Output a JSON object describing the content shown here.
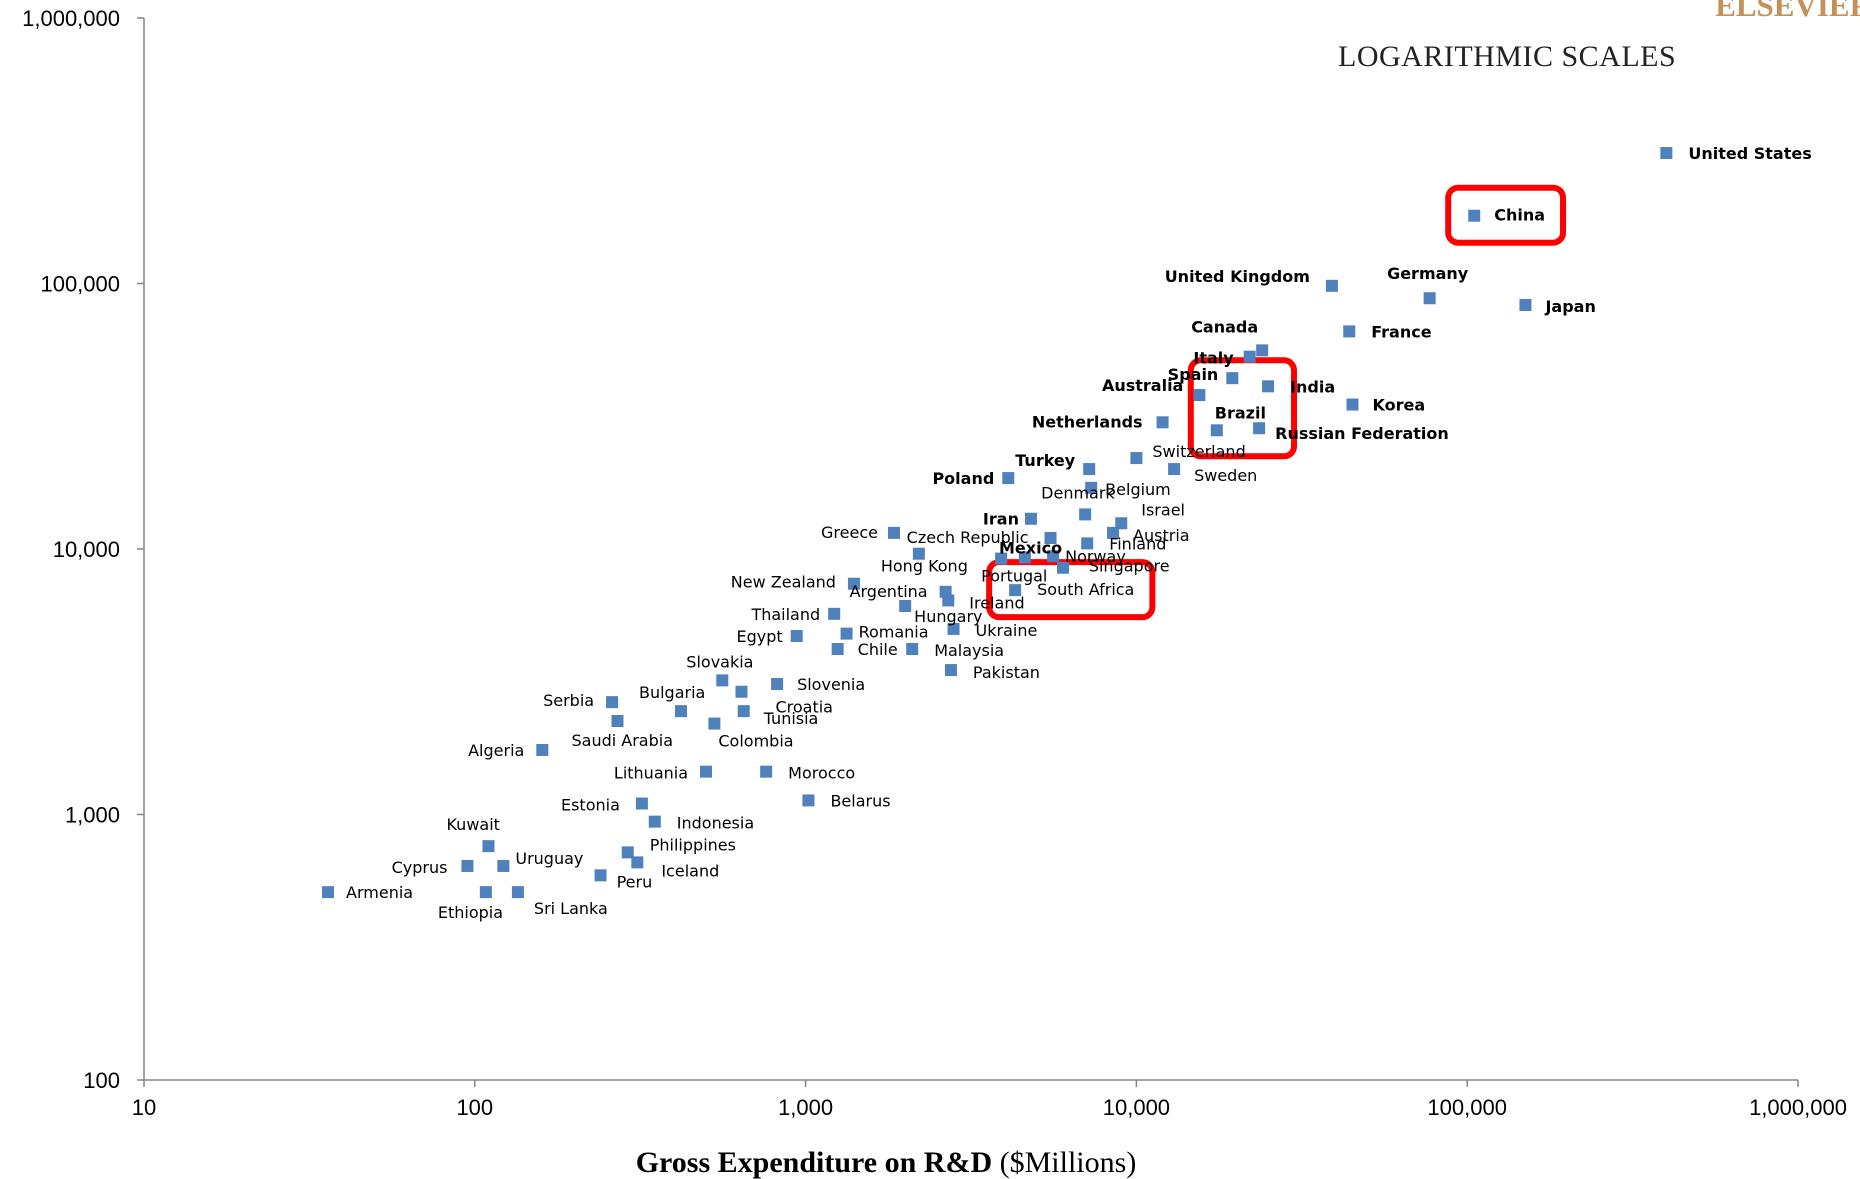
{
  "brand": "ELSEVIER",
  "chart_data": {
    "type": "scatter",
    "title": "",
    "annotation": "LOGARITHMIC SCALES",
    "xlabel_bold": "Gross Expenditure on R&D",
    "xlabel_rest": " ($Millions)",
    "ylabel": "",
    "xscale": "log",
    "yscale": "log",
    "xlim": [
      10,
      1000000
    ],
    "ylim": [
      100,
      1000000
    ],
    "x_ticks": [
      "10",
      "100",
      "1,000",
      "10,000",
      "100,000",
      "1,000,000"
    ],
    "y_ticks": [
      "100",
      "1,000",
      "10,000",
      "100,000",
      "1,000,000"
    ],
    "grid": false,
    "marker_color": "#4f81bd",
    "highlight_color": "#ff0000",
    "points": [
      {
        "label": "United States",
        "x": 400000,
        "y": 310000,
        "bold": true
      },
      {
        "label": "China",
        "x": 105000,
        "y": 180000,
        "bold": true
      },
      {
        "label": "Japan",
        "x": 150000,
        "y": 83000,
        "bold": true
      },
      {
        "label": "Germany",
        "x": 77000,
        "y": 88000,
        "bold": true
      },
      {
        "label": "United Kingdom",
        "x": 39000,
        "y": 98000,
        "bold": true
      },
      {
        "label": "France",
        "x": 44000,
        "y": 66000,
        "bold": true
      },
      {
        "label": "Canada",
        "x": 24000,
        "y": 56000,
        "bold": true
      },
      {
        "label": "Italy",
        "x": 22000,
        "y": 53000,
        "bold": true
      },
      {
        "label": "Spain",
        "x": 19500,
        "y": 44000,
        "bold": true
      },
      {
        "label": "India",
        "x": 25000,
        "y": 41000,
        "bold": true
      },
      {
        "label": "Australia",
        "x": 15500,
        "y": 38000,
        "bold": true
      },
      {
        "label": "Korea",
        "x": 45000,
        "y": 35000,
        "bold": true
      },
      {
        "label": "Brazil",
        "x": 17500,
        "y": 28000,
        "bold": true
      },
      {
        "label": "Russian Federation",
        "x": 23500,
        "y": 28500,
        "bold": true
      },
      {
        "label": "Netherlands",
        "x": 12000,
        "y": 30000,
        "bold": true
      },
      {
        "label": "Switzerland",
        "x": 10000,
        "y": 22000,
        "bold": false
      },
      {
        "label": "Sweden",
        "x": 13000,
        "y": 20000,
        "bold": false
      },
      {
        "label": "Turkey",
        "x": 7200,
        "y": 20000,
        "bold": true
      },
      {
        "label": "Poland",
        "x": 4100,
        "y": 18500,
        "bold": true
      },
      {
        "label": "Belgium",
        "x": 7300,
        "y": 17000,
        "bold": false
      },
      {
        "label": "Iran",
        "x": 4800,
        "y": 13000,
        "bold": true
      },
      {
        "label": "Denmark",
        "x": 7000,
        "y": 13500,
        "bold": false
      },
      {
        "label": "Israel",
        "x": 9000,
        "y": 12500,
        "bold": false
      },
      {
        "label": "Austria",
        "x": 8500,
        "y": 11500,
        "bold": false
      },
      {
        "label": "Greece",
        "x": 1850,
        "y": 11500,
        "bold": false
      },
      {
        "label": "Czech Republic",
        "x": 5500,
        "y": 11000,
        "bold": false
      },
      {
        "label": "Finland",
        "x": 7100,
        "y": 10500,
        "bold": false
      },
      {
        "label": "Mexico",
        "x": 6000,
        "y": 8500,
        "bold": true
      },
      {
        "label": "Hong Kong",
        "x": 2200,
        "y": 9600,
        "bold": false
      },
      {
        "label": "Norway",
        "x": 5600,
        "y": 9400,
        "bold": false
      },
      {
        "label": "Singapore",
        "x": 4600,
        "y": 9300,
        "bold": false
      },
      {
        "label": "Portugal",
        "x": 3900,
        "y": 9200,
        "bold": false
      },
      {
        "label": "South Africa",
        "x": 4300,
        "y": 7000,
        "bold": false
      },
      {
        "label": "Ireland",
        "x": 2700,
        "y": 6400,
        "bold": false
      },
      {
        "label": "Argentina",
        "x": 2650,
        "y": 6900,
        "bold": false
      },
      {
        "label": "New Zealand",
        "x": 1400,
        "y": 7400,
        "bold": false
      },
      {
        "label": "Hungary",
        "x": 2000,
        "y": 6100,
        "bold": false
      },
      {
        "label": "Thailand",
        "x": 1220,
        "y": 5700,
        "bold": false
      },
      {
        "label": "Ukraine",
        "x": 2800,
        "y": 5000,
        "bold": false
      },
      {
        "label": "Romania",
        "x": 1330,
        "y": 4800,
        "bold": false
      },
      {
        "label": "Egypt",
        "x": 940,
        "y": 4700,
        "bold": false
      },
      {
        "label": "Chile",
        "x": 1250,
        "y": 4200,
        "bold": false
      },
      {
        "label": "Malaysia",
        "x": 2100,
        "y": 4200,
        "bold": false
      },
      {
        "label": "Pakistan",
        "x": 2750,
        "y": 3500,
        "bold": false
      },
      {
        "label": "Slovakia",
        "x": 560,
        "y": 3200,
        "bold": false
      },
      {
        "label": "Slovenia",
        "x": 820,
        "y": 3100,
        "bold": false
      },
      {
        "label": "Croatia",
        "x": 640,
        "y": 2900,
        "bold": false
      },
      {
        "label": "Serbia",
        "x": 260,
        "y": 2650,
        "bold": false
      },
      {
        "label": "Bulgaria",
        "x": 420,
        "y": 2450,
        "bold": false
      },
      {
        "label": "Tunisia",
        "x": 650,
        "y": 2450,
        "bold": false
      },
      {
        "label": "Saudi Arabia",
        "x": 270,
        "y": 2250,
        "bold": false
      },
      {
        "label": "Colombia",
        "x": 530,
        "y": 2200,
        "bold": false
      },
      {
        "label": "Algeria",
        "x": 160,
        "y": 1750,
        "bold": false
      },
      {
        "label": "Lithuania",
        "x": 500,
        "y": 1450,
        "bold": false
      },
      {
        "label": "Morocco",
        "x": 760,
        "y": 1450,
        "bold": false
      },
      {
        "label": "Belarus",
        "x": 1020,
        "y": 1130,
        "bold": false
      },
      {
        "label": "Estonia",
        "x": 320,
        "y": 1100,
        "bold": false
      },
      {
        "label": "Indonesia",
        "x": 350,
        "y": 940,
        "bold": false
      },
      {
        "label": "Kuwait",
        "x": 110,
        "y": 760,
        "bold": false
      },
      {
        "label": "Philippines",
        "x": 290,
        "y": 720,
        "bold": false
      },
      {
        "label": "Iceland",
        "x": 310,
        "y": 660,
        "bold": false
      },
      {
        "label": "Cyprus",
        "x": 95,
        "y": 640,
        "bold": false
      },
      {
        "label": "Uruguay",
        "x": 122,
        "y": 640,
        "bold": false
      },
      {
        "label": "Peru",
        "x": 240,
        "y": 590,
        "bold": false
      },
      {
        "label": "Armenia",
        "x": 36,
        "y": 510,
        "bold": false
      },
      {
        "label": "Ethiopia",
        "x": 108,
        "y": 510,
        "bold": false
      },
      {
        "label": "Sri Lanka",
        "x": 135,
        "y": 510,
        "bold": false
      }
    ],
    "highlights": [
      [
        "China"
      ],
      [
        "India",
        "Brazil",
        "Russian Federation"
      ],
      [
        "South Africa"
      ]
    ]
  }
}
